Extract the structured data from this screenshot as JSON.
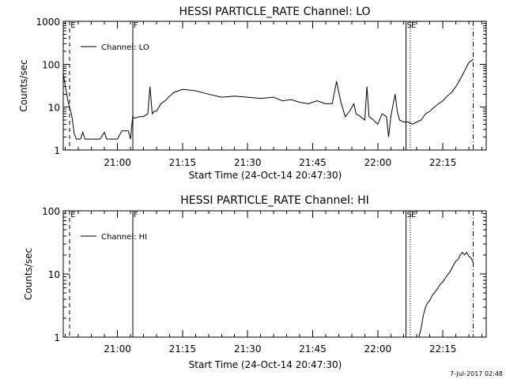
{
  "footer_date": "7-Jul-2017 02:48",
  "chart_data": [
    {
      "type": "line",
      "title": "HESSI PARTICLE_RATE Channel: LO",
      "xlabel": "Start Time (24-Oct-14 20:47:30)",
      "ylabel": "Counts/sec",
      "yscale": "log",
      "ylim": [
        1,
        1000
      ],
      "xlim": [
        "20:47:30",
        "22:25:00"
      ],
      "grid": false,
      "legend_position": "top-left",
      "x_ticks": [
        "21:00",
        "21:15",
        "21:30",
        "21:45",
        "22:00",
        "22:15"
      ],
      "y_ticks": [
        "1",
        "10",
        "100",
        "1000"
      ],
      "markers": [
        {
          "label": "E",
          "time": "20:49:00",
          "style": "dashed"
        },
        {
          "label": "F",
          "time": "21:03:30",
          "style": "solid"
        },
        {
          "label": "S",
          "time": "22:06:30",
          "style": "solid"
        },
        {
          "label": "E",
          "time": "22:07:30",
          "style": "dotted"
        },
        {
          "label": "",
          "time": "22:22:00",
          "style": "dashdot"
        }
      ],
      "series": [
        {
          "name": "Channel: LO",
          "x": [
            "20:47:30",
            "20:48:30",
            "20:49:30",
            "20:50:00",
            "20:50:30",
            "20:51:30",
            "20:52:00",
            "20:52:30",
            "20:53:00",
            "20:54:00",
            "20:56:00",
            "20:57:00",
            "20:57:30",
            "20:58:00",
            "20:58:30",
            "21:00:00",
            "21:01:00",
            "21:02:00",
            "21:02:30",
            "21:03:00",
            "21:03:30",
            "21:04:00",
            "21:05:00",
            "21:06:00",
            "21:07:00",
            "21:07:30",
            "21:08:00",
            "21:08:30",
            "21:09:00",
            "21:10:00",
            "21:11:00",
            "21:12:00",
            "21:13:00",
            "21:15:00",
            "21:18:00",
            "21:21:00",
            "21:24:00",
            "21:27:00",
            "21:30:00",
            "21:33:00",
            "21:36:00",
            "21:38:00",
            "21:40:00",
            "21:42:00",
            "21:44:00",
            "21:46:00",
            "21:48:00",
            "21:49:30",
            "21:50:30",
            "21:51:30",
            "21:52:30",
            "21:53:30",
            "21:54:30",
            "21:55:00",
            "21:56:00",
            "21:57:00",
            "21:57:30",
            "21:58:00",
            "21:59:00",
            "22:00:00",
            "22:01:00",
            "22:02:00",
            "22:02:30",
            "22:03:00",
            "22:04:00",
            "22:04:30",
            "22:05:00",
            "22:06:00",
            "22:07:00",
            "22:08:00",
            "22:09:00",
            "22:10:00",
            "22:11:00",
            "22:12:00",
            "22:13:00",
            "22:14:00",
            "22:15:00",
            "22:16:00",
            "22:17:00",
            "22:18:00",
            "22:19:00",
            "22:20:00",
            "22:21:00",
            "22:22:00"
          ],
          "y": [
            60,
            15,
            6,
            2.5,
            1.8,
            1.8,
            2.6,
            1.8,
            1.8,
            1.8,
            1.8,
            2.6,
            1.8,
            1.8,
            1.8,
            1.8,
            2.8,
            2.8,
            2.8,
            1.8,
            6,
            5.5,
            6,
            6,
            7,
            30,
            7,
            8,
            8,
            12,
            14,
            18,
            22,
            26,
            24,
            20,
            17,
            18,
            17,
            16,
            17,
            14,
            15,
            13,
            12,
            14,
            12,
            12,
            40,
            13,
            6,
            8,
            12,
            7,
            6,
            5,
            30,
            6,
            5,
            4,
            7,
            6,
            2,
            6,
            20,
            8,
            5,
            4.5,
            4.5,
            4,
            4.5,
            5,
            7,
            8,
            10,
            12,
            14,
            18,
            22,
            30,
            45,
            70,
            110,
            130
          ]
        }
      ]
    },
    {
      "type": "line",
      "title": "HESSI PARTICLE_RATE Channel: HI",
      "xlabel": "Start Time (24-Oct-14 20:47:30)",
      "ylabel": "Counts/sec",
      "yscale": "log",
      "ylim": [
        1,
        100
      ],
      "xlim": [
        "20:47:30",
        "22:25:00"
      ],
      "grid": false,
      "legend_position": "top-left",
      "x_ticks": [
        "21:00",
        "21:15",
        "21:30",
        "21:45",
        "22:00",
        "22:15"
      ],
      "y_ticks": [
        "1",
        "10",
        "100"
      ],
      "markers": [
        {
          "label": "E",
          "time": "20:49:00",
          "style": "dashed"
        },
        {
          "label": "F",
          "time": "21:03:30",
          "style": "solid"
        },
        {
          "label": "S",
          "time": "22:06:30",
          "style": "solid"
        },
        {
          "label": "E",
          "time": "22:07:30",
          "style": "dotted"
        },
        {
          "label": "",
          "time": "22:22:00",
          "style": "dashdot"
        }
      ],
      "series": [
        {
          "name": "Channel: HI",
          "x": [
            "22:09:30",
            "22:10:00",
            "22:10:30",
            "22:11:00",
            "22:11:30",
            "22:12:00",
            "22:12:30",
            "22:13:00",
            "22:13:30",
            "22:14:00",
            "22:14:30",
            "22:15:00",
            "22:15:30",
            "22:16:00",
            "22:16:30",
            "22:17:00",
            "22:17:30",
            "22:18:00",
            "22:18:30",
            "22:19:00",
            "22:19:30",
            "22:20:00",
            "22:20:30",
            "22:21:00",
            "22:21:30",
            "22:22:00"
          ],
          "y": [
            1,
            1.4,
            2.2,
            3,
            3.5,
            3.8,
            4.5,
            5,
            5.5,
            6.2,
            7,
            7.5,
            8.5,
            9.5,
            10.5,
            12,
            14,
            16,
            17,
            20,
            22,
            20,
            22,
            19,
            18,
            15
          ]
        }
      ]
    }
  ]
}
